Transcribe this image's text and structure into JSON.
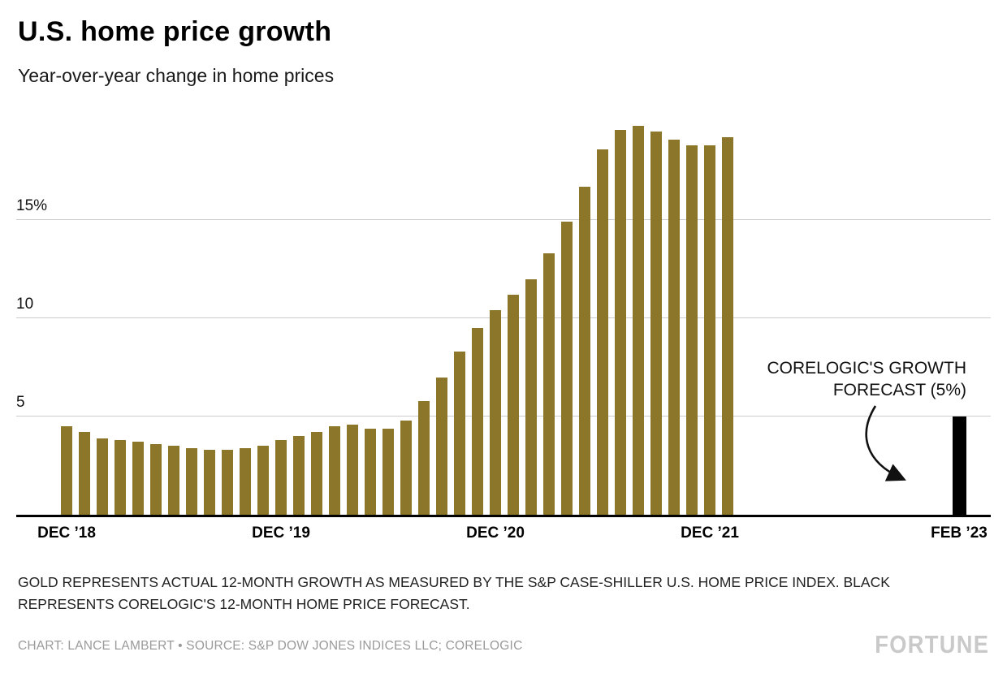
{
  "header": {
    "title": "U.S. home price growth",
    "subtitle": "Year-over-year change in home prices"
  },
  "chart_data": {
    "type": "bar",
    "title": "U.S. home price growth",
    "subtitle": "Year-over-year change in home prices",
    "unit": "percent",
    "ylim": [
      0,
      20
    ],
    "grid": "horizontal",
    "yticks": [
      {
        "value": 5,
        "label": "5"
      },
      {
        "value": 10,
        "label": "10"
      },
      {
        "value": 15,
        "label": "15%"
      }
    ],
    "x_axis_labels": [
      "DEC ’18",
      "DEC ’19",
      "DEC ’20",
      "DEC ’21",
      "FEB ’23"
    ],
    "series": [
      {
        "name": "Actual 12-month growth (S&P Case-Shiller U.S. Home Price Index)",
        "color": "#8c7629",
        "points": [
          {
            "month": "Dec '18",
            "value": 4.5
          },
          {
            "month": "Jan '19",
            "value": 4.2
          },
          {
            "month": "Feb '19",
            "value": 3.9
          },
          {
            "month": "Mar '19",
            "value": 3.8
          },
          {
            "month": "Apr '19",
            "value": 3.7
          },
          {
            "month": "May '19",
            "value": 3.6
          },
          {
            "month": "Jun '19",
            "value": 3.5
          },
          {
            "month": "Jul '19",
            "value": 3.4
          },
          {
            "month": "Aug '19",
            "value": 3.3
          },
          {
            "month": "Sep '19",
            "value": 3.3
          },
          {
            "month": "Oct '19",
            "value": 3.4
          },
          {
            "month": "Nov '19",
            "value": 3.5
          },
          {
            "month": "Dec '19",
            "value": 3.8
          },
          {
            "month": "Jan '20",
            "value": 4.0
          },
          {
            "month": "Feb '20",
            "value": 4.2
          },
          {
            "month": "Mar '20",
            "value": 4.5
          },
          {
            "month": "Apr '20",
            "value": 4.6
          },
          {
            "month": "May '20",
            "value": 4.4
          },
          {
            "month": "Jun '20",
            "value": 4.4
          },
          {
            "month": "Jul '20",
            "value": 4.8
          },
          {
            "month": "Aug '20",
            "value": 5.8
          },
          {
            "month": "Sep '20",
            "value": 7.0
          },
          {
            "month": "Oct '20",
            "value": 8.3
          },
          {
            "month": "Nov '20",
            "value": 9.5
          },
          {
            "month": "Dec '20",
            "value": 10.4
          },
          {
            "month": "Jan '21",
            "value": 11.2
          },
          {
            "month": "Feb '21",
            "value": 12.0
          },
          {
            "month": "Mar '21",
            "value": 13.3
          },
          {
            "month": "Apr '21",
            "value": 14.9
          },
          {
            "month": "May '21",
            "value": 16.7
          },
          {
            "month": "Jun '21",
            "value": 18.6
          },
          {
            "month": "Jul '21",
            "value": 19.6
          },
          {
            "month": "Aug '21",
            "value": 19.8
          },
          {
            "month": "Sep '21",
            "value": 19.5
          },
          {
            "month": "Oct '21",
            "value": 19.1
          },
          {
            "month": "Nov '21",
            "value": 18.8
          },
          {
            "month": "Dec '21",
            "value": 18.8
          },
          {
            "month": "Jan '22",
            "value": 19.2
          }
        ]
      },
      {
        "name": "CoreLogic 12-month forecast",
        "color": "#000000",
        "points": [
          {
            "month": "Feb '23",
            "value": 5.0
          }
        ]
      }
    ],
    "annotation": {
      "text": "CORELOGIC'S GROWTH FORECAST (5%)",
      "lines": [
        "CORELOGIC'S GROWTH",
        "FORECAST (5%)"
      ]
    },
    "legend_position": "none"
  },
  "footer": {
    "note": "GOLD REPRESENTS ACTUAL 12-MONTH GROWTH AS MEASURED BY THE S&P CASE-SHILLER U.S. HOME PRICE INDEX. BLACK REPRESENTS CORELOGIC'S 12-MONTH HOME PRICE FORECAST.",
    "credit": "CHART: LANCE LAMBERT • SOURCE: S&P DOW JONES INDICES LLC; CORELOGIC",
    "brand": "FORTUNE"
  }
}
